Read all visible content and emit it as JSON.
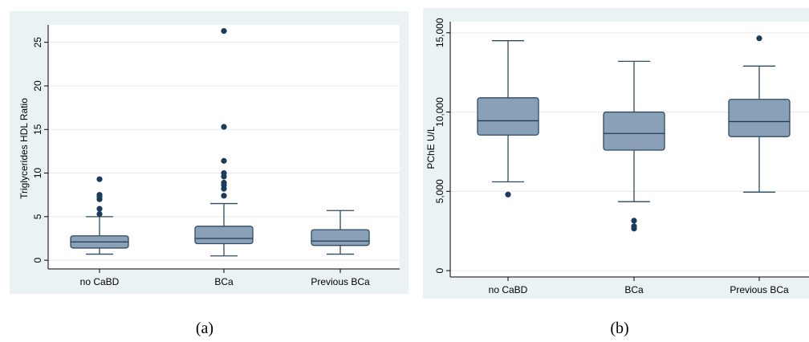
{
  "chart_data": [
    {
      "type": "box",
      "panel_label": "a",
      "categories": [
        "no CaBD",
        "BCa",
        "Previous BCa"
      ],
      "ylabel": "Triglycerides HDL Ratio",
      "xlabel": "",
      "ylim": [
        -1,
        27
      ],
      "yticks": [
        0,
        5,
        10,
        15,
        20,
        25
      ],
      "ytick_labels": [
        "0",
        "5",
        "10",
        "15",
        "20",
        "25"
      ],
      "grid": true,
      "box_color": "#8aa0b6",
      "line_color": "#2d4a66",
      "outlier_color": "#1a3c5c",
      "boxes": [
        {
          "category": "no CaBD",
          "whisker_low": 0.7,
          "q1": 1.4,
          "median": 2.1,
          "q3": 2.8,
          "whisker_high": 5.0,
          "outliers": [
            5.3,
            5.9,
            7.0,
            7.3,
            7.5,
            9.3
          ]
        },
        {
          "category": "BCa",
          "whisker_low": 0.5,
          "q1": 1.9,
          "median": 2.5,
          "q3": 3.9,
          "whisker_high": 6.5,
          "outliers": [
            7.4,
            8.2,
            8.6,
            8.9,
            9.6,
            10.0,
            11.4,
            15.3,
            26.3
          ]
        },
        {
          "category": "Previous BCa",
          "whisker_low": 0.7,
          "q1": 1.7,
          "median": 2.2,
          "q3": 3.5,
          "whisker_high": 5.7,
          "outliers": []
        }
      ]
    },
    {
      "type": "box",
      "panel_label": "b",
      "categories": [
        "no CaBD",
        "BCa",
        "Previous BCa"
      ],
      "ylabel": "PChE  U/L",
      "xlabel": "",
      "ylim": [
        -400,
        15700
      ],
      "yticks": [
        0,
        5000,
        10000,
        15000
      ],
      "ytick_labels": [
        "0",
        "5,000",
        "10,000",
        "15,000"
      ],
      "grid": true,
      "box_color": "#8aa0b6",
      "line_color": "#2d4a66",
      "outlier_color": "#1a3c5c",
      "boxes": [
        {
          "category": "no CaBD",
          "whisker_low": 5600,
          "q1": 8550,
          "median": 9450,
          "q3": 10900,
          "whisker_high": 14500,
          "outliers": [
            4800
          ]
        },
        {
          "category": "BCa",
          "whisker_low": 4350,
          "q1": 7600,
          "median": 8650,
          "q3": 10000,
          "whisker_high": 13200,
          "outliers": [
            3150,
            2800,
            2650
          ]
        },
        {
          "category": "Previous BCa",
          "whisker_low": 4950,
          "q1": 8450,
          "median": 9400,
          "q3": 10800,
          "whisker_high": 12900,
          "outliers": [
            14650
          ]
        }
      ]
    }
  ],
  "captions": {
    "a": "(a)",
    "b": "(b)"
  }
}
